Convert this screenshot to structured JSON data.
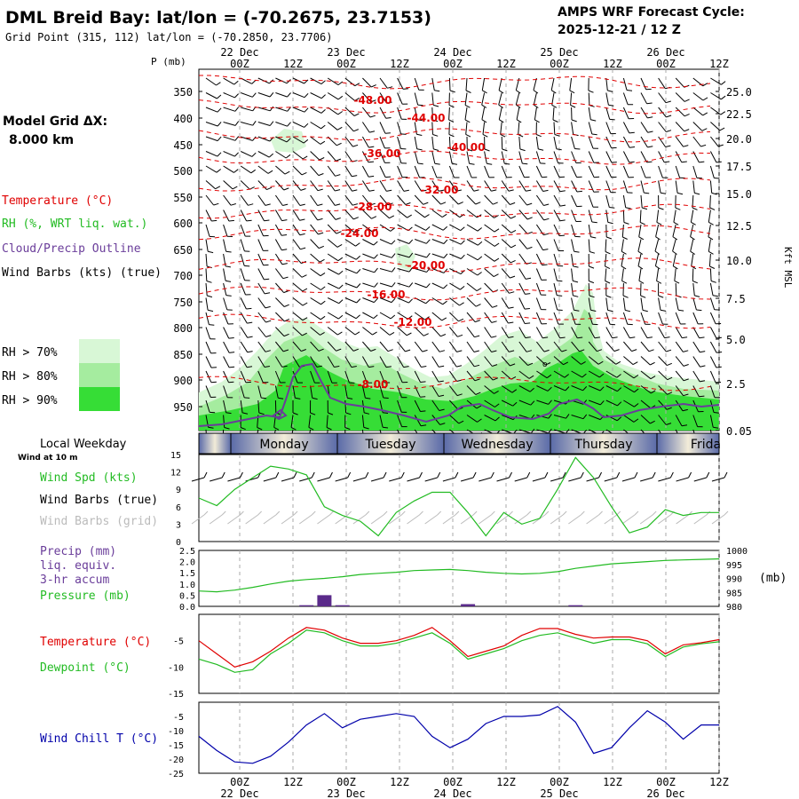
{
  "header": {
    "title": "DML Breid Bay:  lat/lon = (-70.2675, 23.7153)",
    "grid": "Grid Point (315, 112) lat/lon = (-70.2850, 23.7706)",
    "cycle_label": "AMPS WRF Forecast Cycle:",
    "cycle_value": "2025-12-21 / 12  Z",
    "p_label": "P (mb)",
    "right_axis_label": "Kft MSL"
  },
  "left_panel": {
    "model_grid_label": "Model Grid ΔX:",
    "model_grid_value": "8.000 km",
    "legend_temperature": "Temperature (°C)",
    "legend_rh": "RH (%, WRT liq. wat.)",
    "legend_cloud": "Cloud/Precip Outline",
    "legend_wind": "Wind Barbs (kts) (true)",
    "rh_70": "RH > 70%",
    "rh_80": "RH > 80%",
    "rh_90": "RH > 90%",
    "local_weekday": "Local Weekday",
    "wind_at_10m": "Wind at 10 m",
    "wind_spd": "Wind Spd (kts)",
    "wind_barbs_true": "Wind Barbs (true)",
    "wind_barbs_grid": "Wind Barbs (grid)",
    "precip_1": "Precip (mm)",
    "precip_2": "liq. equiv.",
    "precip_3": "3-hr accum",
    "pressure": "Pressure (mb)",
    "temperature": "Temperature (°C)",
    "dewpoint": "Dewpoint (°C)",
    "wind_chill": "Wind Chill T (°C)",
    "mb_unit": "(mb)"
  },
  "colors": {
    "temperature": "#e00000",
    "rh": "#22bb22",
    "cloud": "#6a3d9a",
    "rh70": "#d8f7d6",
    "rh80": "#a5ec9f",
    "rh90": "#36dd36",
    "precip_bar": "#5a2a8a",
    "wind_chill": "#0000aa",
    "grid": "#bbbbbb"
  },
  "chart_data": [
    {
      "type": "time-height",
      "time_axis": {
        "tick_labels": [
          "00Z",
          "12Z",
          "00Z",
          "12Z",
          "00Z",
          "12Z",
          "00Z",
          "12Z",
          "00Z",
          "12Z"
        ],
        "date_labels": [
          "22 Dec",
          "23 Dec",
          "24 Dec",
          "25 Dec",
          "26 Dec"
        ]
      },
      "pressure_labels": [
        "350",
        "400",
        "450",
        "500",
        "550",
        "600",
        "650",
        "700",
        "750",
        "800",
        "850",
        "900",
        "950"
      ],
      "height_labels": [
        "25.0",
        "22.5",
        "20.0",
        "17.5",
        "15.0",
        "12.5",
        "10.0",
        "7.5",
        "5.0",
        "2.5",
        "0.05"
      ],
      "isotherm_labels": [
        "-48.00",
        "-44.00",
        "-40.00",
        "-36.00",
        "-32.00",
        "-28.00",
        "-24.00",
        "-20.00",
        "-16.00",
        "-12.00",
        "-8.00"
      ]
    },
    {
      "type": "weekday-bar",
      "days": [
        "Monday",
        "Tuesday",
        "Wednesday",
        "Thursday",
        "Frida"
      ]
    },
    {
      "type": "line",
      "name": "wind_speed",
      "y_ticks": [
        "15",
        "12",
        "9",
        "6",
        "3",
        "0"
      ],
      "ylim": [
        0,
        15
      ],
      "values": [
        7.5,
        6.2,
        9,
        11,
        13,
        12.5,
        11.5,
        6,
        4.5,
        3.5,
        1,
        5,
        7,
        8.5,
        8.5,
        5,
        1,
        5,
        3,
        4,
        9,
        14.5,
        11,
        6,
        1.5,
        2.5,
        5.5,
        4.5,
        5,
        5
      ],
      "barb_row_true": "Wind Barbs (true)",
      "barb_row_grid": "Wind Barbs (grid)"
    },
    {
      "type": "bar+line",
      "name": "precip_pressure",
      "precip_ticks": [
        "2.5",
        "2.0",
        "1.5",
        "1.0",
        "0.5",
        "0.0"
      ],
      "pressure_ticks": [
        "1000",
        "995",
        "990",
        "985",
        "980"
      ],
      "precip_bars": [
        {
          "index": 6,
          "value": 0.05
        },
        {
          "index": 7,
          "value": 0.5
        },
        {
          "index": 8,
          "value": 0.05
        },
        {
          "index": 15,
          "value": 0.1
        },
        {
          "index": 21,
          "value": 0.05
        }
      ],
      "pressure_values": [
        985.5,
        985.2,
        985.8,
        986.8,
        988,
        989,
        989.6,
        990,
        990.6,
        991.4,
        991.8,
        992.2,
        992.8,
        993,
        993.2,
        992.8,
        992.2,
        991.8,
        991.6,
        991.8,
        992.4,
        993.6,
        994.4,
        995.2,
        995.6,
        996,
        996.4,
        996.6,
        996.8,
        997
      ]
    },
    {
      "type": "line",
      "name": "temperature_dewpoint",
      "y_ticks": [
        "-5",
        "-10",
        "-15"
      ],
      "ylim": [
        -15,
        0
      ],
      "temperature": [
        -5,
        -7.5,
        -10,
        -9,
        -7,
        -4.5,
        -2.5,
        -3,
        -4.5,
        -5.5,
        -5.5,
        -5,
        -4,
        -2.5,
        -5,
        -8,
        -7,
        -6,
        -4,
        -2.7,
        -2.7,
        -3.8,
        -4.5,
        -4.3,
        -4.3,
        -5,
        -7.5,
        -5.8,
        -5.4,
        -4.8
      ],
      "dewpoint": [
        -8.5,
        -9.5,
        -11,
        -10.5,
        -7.5,
        -5.5,
        -3,
        -3.5,
        -5,
        -6,
        -6,
        -5.5,
        -4.5,
        -3.5,
        -5.5,
        -8.5,
        -7.5,
        -6.5,
        -5,
        -4,
        -3.5,
        -4.5,
        -5.5,
        -4.8,
        -4.8,
        -5.6,
        -8,
        -6.2,
        -5.6,
        -5.2
      ]
    },
    {
      "type": "line",
      "name": "wind_chill",
      "y_ticks": [
        "-5",
        "-10",
        "-15",
        "-20",
        "-25"
      ],
      "ylim": [
        -25,
        0
      ],
      "values": [
        -12,
        -17,
        -21,
        -21.5,
        -19,
        -14,
        -8,
        -4,
        -9,
        -6,
        -5,
        -4,
        -5,
        -12,
        -16,
        -13,
        -7.5,
        -5,
        -5,
        -4.5,
        -1.5,
        -7,
        -18,
        -16,
        -9,
        -3,
        -7,
        -13,
        -8,
        -8
      ]
    }
  ]
}
